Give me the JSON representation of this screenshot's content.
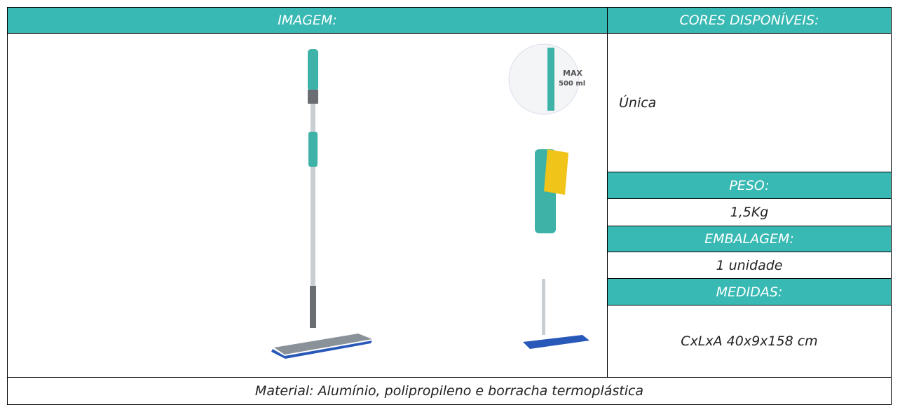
{
  "table": {
    "headers": [
      "IMAGEM:",
      "CORES DISPONÍVEIS:"
    ],
    "cores": "Única",
    "specs": [
      {
        "label": "PESO:",
        "value": "1,5Kg"
      },
      {
        "label": "EMBALAGEM:",
        "value": "1 unidade"
      },
      {
        "label": "MEDIDAS:",
        "value": "CxLxA 40x9x158 cm"
      }
    ],
    "footer": "Material: Alumínio, polipropileno e borracha termoplástica"
  },
  "image": {
    "badge": [
      "MAX",
      "500 ml"
    ]
  }
}
